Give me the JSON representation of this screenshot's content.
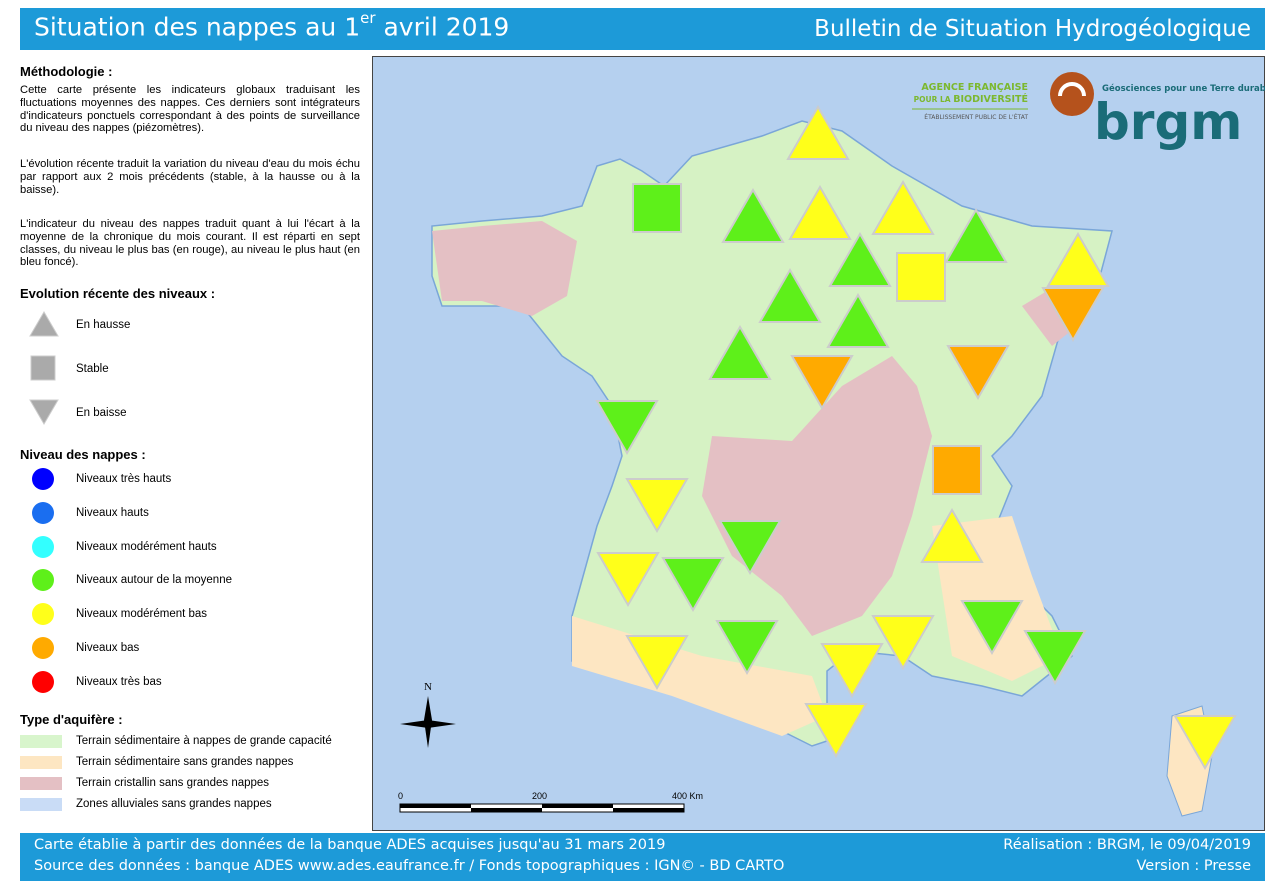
{
  "header": {
    "title_start": "Situation des nappes au 1",
    "title_sup": "er",
    "title_end": " avril 2019",
    "subtitle": "Bulletin de Situation Hydrogéologique"
  },
  "methodology": {
    "heading": "Méthodologie :",
    "paragraphs": [
      "Cette carte présente les indicateurs globaux traduisant les fluctuations moyennes des nappes. Ces derniers sont intégrateurs d'indicateurs ponctuels correspondant à des points de surveillance du niveau des nappes (piézomètres).",
      "L'évolution récente traduit la variation du niveau d'eau du mois échu par rapport aux 2 mois précédents (stable, à la hausse ou à la baisse).",
      "L'indicateur du niveau des nappes traduit quant à lui l'écart à la moyenne de la chronique du mois courant. Il est réparti en sept classes, du niveau le plus bas (en rouge), au niveau le plus haut (en bleu foncé)."
    ]
  },
  "evolution": {
    "heading": "Evolution récente des niveaux :",
    "items": [
      "En hausse",
      "Stable",
      "En baisse"
    ]
  },
  "levels": {
    "heading": "Niveau des nappes :",
    "items": [
      {
        "name": "Niveaux très hauts",
        "color": "#0000ff"
      },
      {
        "name": "Niveaux hauts",
        "color": "#1a6ef0"
      },
      {
        "name": "Niveaux modérément hauts",
        "color": "#33ffff"
      },
      {
        "name": "Niveaux autour de la moyenne",
        "color": "#5ef01a"
      },
      {
        "name": "Niveaux modérément bas",
        "color": "#ffff1a"
      },
      {
        "name": "Niveaux bas",
        "color": "#ffaa00"
      },
      {
        "name": "Niveaux très bas",
        "color": "#ff0000"
      }
    ]
  },
  "aquifer": {
    "heading": "Type d'aquifère :",
    "items": [
      {
        "name": "Terrain sédimentaire à nappes de grande capacité",
        "color": "#d8f5cc"
      },
      {
        "name": "Terrain sédimentaire sans grandes nappes",
        "color": "#fde6c2"
      },
      {
        "name": "Terrain cristallin sans grandes nappes",
        "color": "#e4c0c4"
      },
      {
        "name": "Zones alluviales sans grandes nappes",
        "color": "#c9dcf6"
      }
    ]
  },
  "map": {
    "afb_line1": "AGENCE FRANÇAISE",
    "afb_line2_a": "POUR LA ",
    "afb_line2_b": "BIODIVERSITÉ",
    "afb_line3": "ÉTABLISSEMENT PUBLIC DE L'ÉTAT",
    "brgm_tagline": "Géosciences pour une Terre durable",
    "brgm": "brgm",
    "north": "N",
    "scale_labels": [
      "0",
      "200",
      "400 Km"
    ]
  },
  "footer": {
    "left": [
      "Carte établie à partir des données de la banque ADES acquises jusqu'au 31 mars 2019",
      "Source des données : banque ADES www.ades.eaufrance.fr / Fonds topographiques : IGN© - BD CARTO"
    ],
    "right": [
      "Réalisation : BRGM, le 09/04/2019",
      "Version : Presse"
    ]
  }
}
